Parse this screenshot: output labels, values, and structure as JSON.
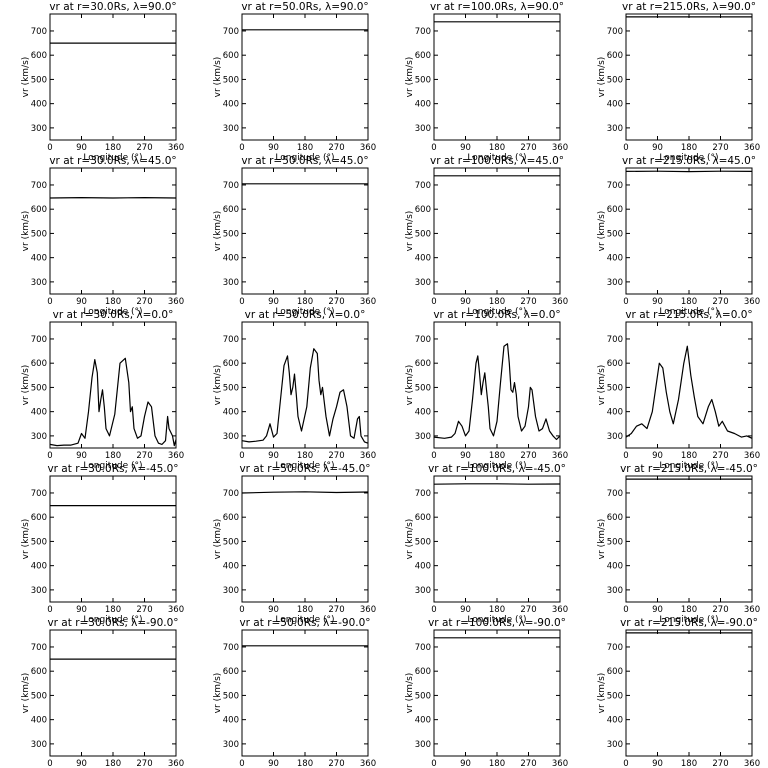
{
  "chart_data": [
    {
      "type": "line",
      "title": "vr at r=30.0Rs, λ=90.0°",
      "xlabel": "Longitude (°)",
      "ylabel": "vr (km/s)",
      "xlim": [
        0,
        360
      ],
      "ylim": [
        250,
        770
      ],
      "xticks": [
        0,
        90,
        180,
        270,
        360
      ],
      "yticks": [
        300,
        400,
        500,
        600,
        700
      ],
      "x": [
        0,
        360
      ],
      "y": [
        650,
        650
      ]
    },
    {
      "type": "line",
      "title": "vr at r=50.0Rs, λ=90.0°",
      "xlabel": "Longitude (°)",
      "ylabel": "vr (km/s)",
      "xlim": [
        0,
        360
      ],
      "ylim": [
        250,
        770
      ],
      "xticks": [
        0,
        90,
        180,
        270,
        360
      ],
      "yticks": [
        300,
        400,
        500,
        600,
        700
      ],
      "x": [
        0,
        360
      ],
      "y": [
        705,
        705
      ]
    },
    {
      "type": "line",
      "title": "vr at r=100.0Rs, λ=90.0°",
      "xlabel": "Longitude (°)",
      "ylabel": "vr (km/s)",
      "xlim": [
        0,
        360
      ],
      "ylim": [
        250,
        770
      ],
      "xticks": [
        0,
        90,
        180,
        270,
        360
      ],
      "yticks": [
        300,
        400,
        500,
        600,
        700
      ],
      "x": [
        0,
        360
      ],
      "y": [
        738,
        738
      ]
    },
    {
      "type": "line",
      "title": "vr at r=215.0Rs, λ=90.0°",
      "xlabel": "Longitude (°)",
      "ylabel": "vr (km/s)",
      "xlim": [
        0,
        360
      ],
      "ylim": [
        250,
        770
      ],
      "xticks": [
        0,
        90,
        180,
        270,
        360
      ],
      "yticks": [
        300,
        400,
        500,
        600,
        700
      ],
      "x": [
        0,
        360
      ],
      "y": [
        758,
        758
      ]
    },
    {
      "type": "line",
      "title": "vr at r=30.0Rs, λ=45.0°",
      "xlabel": "Longitude (°)",
      "ylabel": "vr (km/s)",
      "xlim": [
        0,
        360
      ],
      "ylim": [
        250,
        770
      ],
      "xticks": [
        0,
        90,
        180,
        270,
        360
      ],
      "yticks": [
        300,
        400,
        500,
        600,
        700
      ],
      "x": [
        0,
        90,
        180,
        270,
        360
      ],
      "y": [
        646,
        648,
        646,
        648,
        646
      ]
    },
    {
      "type": "line",
      "title": "vr at r=50.0Rs, λ=45.0°",
      "xlabel": "Longitude (°)",
      "ylabel": "vr (km/s)",
      "xlim": [
        0,
        360
      ],
      "ylim": [
        250,
        770
      ],
      "xticks": [
        0,
        90,
        180,
        270,
        360
      ],
      "yticks": [
        300,
        400,
        500,
        600,
        700
      ],
      "x": [
        0,
        360
      ],
      "y": [
        705,
        705
      ]
    },
    {
      "type": "line",
      "title": "vr at r=100.0Rs, λ=45.0°",
      "xlabel": "Longitude (°)",
      "ylabel": "vr (km/s)",
      "xlim": [
        0,
        360
      ],
      "ylim": [
        250,
        770
      ],
      "xticks": [
        0,
        90,
        180,
        270,
        360
      ],
      "yticks": [
        300,
        400,
        500,
        600,
        700
      ],
      "x": [
        0,
        360
      ],
      "y": [
        738,
        738
      ]
    },
    {
      "type": "line",
      "title": "vr at r=215.0Rs, λ=45.0°",
      "xlabel": "Longitude (°)",
      "ylabel": "vr (km/s)",
      "xlim": [
        0,
        360
      ],
      "ylim": [
        250,
        770
      ],
      "xticks": [
        0,
        90,
        180,
        270,
        360
      ],
      "yticks": [
        300,
        400,
        500,
        600,
        700
      ],
      "x": [
        0,
        90,
        180,
        270,
        360
      ],
      "y": [
        756,
        757,
        755,
        757,
        756
      ]
    },
    {
      "type": "line",
      "title": "vr at r=30.0Rs, λ=0.0°",
      "xlabel": "Longitude (°)",
      "ylabel": "vr (km/s)",
      "xlim": [
        0,
        360
      ],
      "ylim": [
        250,
        770
      ],
      "xticks": [
        0,
        90,
        180,
        270,
        360
      ],
      "yticks": [
        300,
        400,
        500,
        600,
        700
      ],
      "x": [
        0,
        20,
        40,
        60,
        80,
        90,
        100,
        110,
        120,
        128,
        135,
        140,
        145,
        150,
        155,
        160,
        170,
        185,
        200,
        215,
        225,
        230,
        235,
        240,
        250,
        260,
        270,
        280,
        290,
        300,
        310,
        320,
        330,
        336,
        340,
        350,
        355,
        360
      ],
      "y": [
        265,
        260,
        262,
        262,
        270,
        310,
        290,
        400,
        540,
        615,
        560,
        400,
        450,
        490,
        420,
        330,
        300,
        390,
        600,
        620,
        520,
        400,
        420,
        330,
        290,
        300,
        380,
        440,
        420,
        300,
        270,
        265,
        280,
        380,
        330,
        300,
        260,
        285
      ]
    },
    {
      "type": "line",
      "title": "vr at r=50.0Rs, λ=0.0°",
      "xlabel": "Longitude (°)",
      "ylabel": "vr (km/s)",
      "xlim": [
        0,
        360
      ],
      "ylim": [
        250,
        770
      ],
      "xticks": [
        0,
        90,
        180,
        270,
        360
      ],
      "yticks": [
        300,
        400,
        500,
        600,
        700
      ],
      "x": [
        0,
        20,
        40,
        60,
        70,
        80,
        90,
        100,
        110,
        120,
        130,
        135,
        140,
        145,
        150,
        155,
        160,
        170,
        185,
        195,
        205,
        215,
        220,
        225,
        230,
        240,
        250,
        260,
        270,
        280,
        290,
        300,
        310,
        320,
        330,
        335,
        340,
        350,
        360
      ],
      "y": [
        280,
        275,
        278,
        282,
        300,
        350,
        295,
        310,
        450,
        590,
        630,
        560,
        470,
        500,
        555,
        470,
        380,
        320,
        420,
        580,
        660,
        640,
        530,
        470,
        500,
        380,
        300,
        370,
        420,
        480,
        490,
        420,
        300,
        290,
        370,
        380,
        300,
        275,
        270
      ]
    },
    {
      "type": "line",
      "title": "vr at r=100.0Rs, λ=0.0°",
      "xlabel": "Longitude (°)",
      "ylabel": "vr (km/s)",
      "xlim": [
        0,
        360
      ],
      "ylim": [
        250,
        770
      ],
      "xticks": [
        0,
        90,
        180,
        270,
        360
      ],
      "yticks": [
        300,
        400,
        500,
        600,
        700
      ],
      "x": [
        0,
        30,
        50,
        60,
        70,
        80,
        90,
        100,
        110,
        120,
        125,
        130,
        135,
        140,
        145,
        150,
        155,
        160,
        170,
        180,
        190,
        200,
        210,
        215,
        220,
        225,
        230,
        235,
        240,
        250,
        260,
        270,
        275,
        280,
        290,
        300,
        310,
        320,
        330,
        340,
        350,
        360
      ],
      "y": [
        295,
        290,
        295,
        310,
        360,
        340,
        300,
        320,
        450,
        600,
        630,
        560,
        470,
        520,
        560,
        490,
        420,
        330,
        300,
        360,
        520,
        670,
        680,
        600,
        490,
        480,
        520,
        470,
        380,
        320,
        340,
        420,
        500,
        490,
        380,
        320,
        330,
        370,
        320,
        300,
        285,
        300
      ]
    },
    {
      "type": "line",
      "title": "vr at r=215.0Rs, λ=0.0°",
      "xlabel": "Longitude (°)",
      "ylabel": "vr (km/s)",
      "xlim": [
        0,
        360
      ],
      "ylim": [
        250,
        770
      ],
      "xticks": [
        0,
        90,
        180,
        270,
        360
      ],
      "yticks": [
        300,
        400,
        500,
        600,
        700
      ],
      "x": [
        0,
        15,
        30,
        45,
        60,
        75,
        85,
        95,
        105,
        115,
        125,
        135,
        150,
        165,
        175,
        185,
        195,
        205,
        220,
        235,
        245,
        255,
        265,
        275,
        290,
        310,
        330,
        345,
        360
      ],
      "y": [
        295,
        310,
        340,
        350,
        330,
        400,
        500,
        600,
        580,
        480,
        400,
        350,
        450,
        600,
        670,
        550,
        460,
        380,
        350,
        420,
        450,
        400,
        340,
        360,
        320,
        310,
        295,
        300,
        290
      ]
    },
    {
      "type": "line",
      "title": "vr at r=30.0Rs, λ=-45.0°",
      "xlabel": "Longitude (°)",
      "ylabel": "vr (km/s)",
      "xlim": [
        0,
        360
      ],
      "ylim": [
        250,
        770
      ],
      "xticks": [
        0,
        90,
        180,
        270,
        360
      ],
      "yticks": [
        300,
        400,
        500,
        600,
        700
      ],
      "x": [
        0,
        360
      ],
      "y": [
        648,
        648
      ]
    },
    {
      "type": "line",
      "title": "vr at r=50.0Rs, λ=-45.0°",
      "xlabel": "Longitude (°)",
      "ylabel": "vr (km/s)",
      "xlim": [
        0,
        360
      ],
      "ylim": [
        250,
        770
      ],
      "xticks": [
        0,
        90,
        180,
        270,
        360
      ],
      "yticks": [
        300,
        400,
        500,
        600,
        700
      ],
      "x": [
        0,
        90,
        180,
        270,
        360
      ],
      "y": [
        700,
        703,
        705,
        702,
        704
      ]
    },
    {
      "type": "line",
      "title": "vr at r=100.0Rs, λ=-45.0°",
      "xlabel": "Longitude (°)",
      "ylabel": "vr (km/s)",
      "xlim": [
        0,
        360
      ],
      "ylim": [
        250,
        770
      ],
      "xticks": [
        0,
        90,
        180,
        270,
        360
      ],
      "yticks": [
        300,
        400,
        500,
        600,
        700
      ],
      "x": [
        0,
        90,
        180,
        270,
        360
      ],
      "y": [
        736,
        738,
        738,
        736,
        737
      ]
    },
    {
      "type": "line",
      "title": "vr at r=215.0Rs, λ=-45.0°",
      "xlabel": "Longitude (°)",
      "ylabel": "vr (km/s)",
      "xlim": [
        0,
        360
      ],
      "ylim": [
        250,
        770
      ],
      "xticks": [
        0,
        90,
        180,
        270,
        360
      ],
      "yticks": [
        300,
        400,
        500,
        600,
        700
      ],
      "x": [
        0,
        360
      ],
      "y": [
        757,
        757
      ]
    },
    {
      "type": "line",
      "title": "vr at r=30.0Rs, λ=-90.0°",
      "xlabel": "Longitude (°)",
      "ylabel": "vr (km/s)",
      "xlim": [
        0,
        360
      ],
      "ylim": [
        250,
        770
      ],
      "xticks": [
        0,
        90,
        180,
        270,
        360
      ],
      "yticks": [
        300,
        400,
        500,
        600,
        700
      ],
      "x": [
        0,
        360
      ],
      "y": [
        650,
        650
      ]
    },
    {
      "type": "line",
      "title": "vr at r=50.0Rs, λ=-90.0°",
      "xlabel": "Longitude (°)",
      "ylabel": "vr (km/s)",
      "xlim": [
        0,
        360
      ],
      "ylim": [
        250,
        770
      ],
      "xticks": [
        0,
        90,
        180,
        270,
        360
      ],
      "yticks": [
        300,
        400,
        500,
        600,
        700
      ],
      "x": [
        0,
        360
      ],
      "y": [
        705,
        705
      ]
    },
    {
      "type": "line",
      "title": "vr at r=100.0Rs, λ=-90.0°",
      "xlabel": "Longitude (°)",
      "ylabel": "vr (km/s)",
      "xlim": [
        0,
        360
      ],
      "ylim": [
        250,
        770
      ],
      "xticks": [
        0,
        90,
        180,
        270,
        360
      ],
      "yticks": [
        300,
        400,
        500,
        600,
        700
      ],
      "x": [
        0,
        360
      ],
      "y": [
        738,
        738
      ]
    },
    {
      "type": "line",
      "title": "vr at r=215.0Rs, λ=-90.0°",
      "xlabel": "Longitude (°)",
      "ylabel": "vr (km/s)",
      "xlim": [
        0,
        360
      ],
      "ylim": [
        250,
        770
      ],
      "xticks": [
        0,
        90,
        180,
        270,
        360
      ],
      "yticks": [
        300,
        400,
        500,
        600,
        700
      ],
      "x": [
        0,
        360
      ],
      "y": [
        758,
        758
      ]
    }
  ]
}
